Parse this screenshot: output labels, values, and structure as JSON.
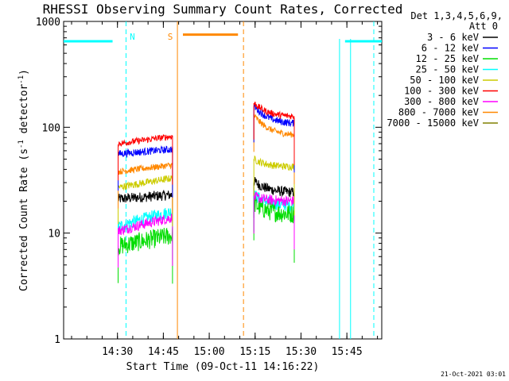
{
  "chart_data": {
    "type": "line",
    "title": "RHESSI Observing Summary Count Rates, Corrected",
    "xlabel": "Start Time (09-Oct-11 14:16:22)",
    "ylabel": "Corrected Count Rate (s^-1 detector^-1)",
    "ylabel_parts": {
      "prefix": "Corrected Count Rate (s",
      "exp1": "-1",
      "mid": " detector",
      "exp2": "-1",
      "suffix": ")"
    },
    "y_scale": "log",
    "xlim_minutes": [
      -4,
      100
    ],
    "ylim": [
      1,
      1000
    ],
    "x_ticks": [
      {
        "label": "14:30",
        "min": 13.6
      },
      {
        "label": "14:45",
        "min": 28.6
      },
      {
        "label": "15:00",
        "min": 43.6
      },
      {
        "label": "15:15",
        "min": 58.6
      },
      {
        "label": "15:30",
        "min": 73.6
      },
      {
        "label": "15:45",
        "min": 88.6
      }
    ],
    "y_ticks": [
      {
        "label": "1",
        "value": 1
      },
      {
        "label": "10",
        "value": 10
      },
      {
        "label": "100",
        "value": 100
      },
      {
        "label": "1000",
        "value": 1000
      }
    ],
    "legend_header": [
      "Det 1,3,4,5,6,9,",
      "Att 0"
    ],
    "legend_placement": "right",
    "series": [
      {
        "name": "3 - 6 keV",
        "color": "#000000",
        "seg1": [
          21,
          23
        ],
        "seg2": [
          31,
          24
        ],
        "noise": 0.05
      },
      {
        "name": "6 - 12 keV",
        "color": "#0000ff",
        "seg1": [
          56,
          62
        ],
        "seg2": [
          160,
          107
        ],
        "noise": 0.035
      },
      {
        "name": "12 - 25 keV",
        "color": "#00dd00",
        "seg1": [
          7.5,
          9.5
        ],
        "seg2": [
          19,
          15
        ],
        "noise": 0.09
      },
      {
        "name": "25 - 50 keV",
        "color": "#00ffff",
        "seg1": [
          11.5,
          16
        ],
        "seg2": [
          23,
          18
        ],
        "noise": 0.06
      },
      {
        "name": "50 - 100 keV",
        "color": "#cccc00",
        "seg1": [
          27,
          33
        ],
        "seg2": [
          50,
          42
        ],
        "noise": 0.035
      },
      {
        "name": "100 - 300 keV",
        "color": "#ff0000",
        "seg1": [
          70,
          82
        ],
        "seg2": [
          170,
          125
        ],
        "noise": 0.03
      },
      {
        "name": "300 - 800 keV",
        "color": "#ff00ff",
        "seg1": [
          10.5,
          14
        ],
        "seg2": [
          22,
          20
        ],
        "noise": 0.05
      },
      {
        "name": "800 - 7000 keV",
        "color": "#ff8800",
        "seg1": [
          38,
          44
        ],
        "seg2": [
          130,
          83
        ],
        "noise": 0.03
      },
      {
        "name": "7000 - 15000 keV",
        "color": "#808000",
        "seg1": [],
        "seg2": [],
        "noise": 0
      }
    ],
    "segments_minutes": [
      [
        13.8,
        31.6
      ],
      [
        58.2,
        71.4
      ]
    ],
    "flags": [
      {
        "label": "N",
        "color": "#00ffff",
        "bars": [
          [
            -4,
            12
          ],
          [
            88,
            100
          ]
        ],
        "level": 650,
        "dashed_min": [
          16.4,
          97.4
        ],
        "solid_min": []
      },
      {
        "label": "S",
        "color": "#ff8800",
        "bars": [
          [
            35,
            53
          ]
        ],
        "level": 750,
        "dashed_min": [
          54.8
        ],
        "solid_min": [
          33.2
        ]
      }
    ],
    "eclipse_lines_min": [
      86.2,
      89.8
    ],
    "footer_date": "21-Oct-2021 03:01"
  }
}
